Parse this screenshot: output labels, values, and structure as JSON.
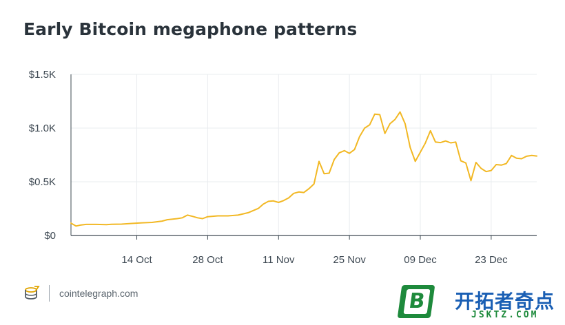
{
  "title": "Early Bitcoin megaphone patterns",
  "footer": {
    "site": "cointelegraph.com",
    "logo_icon": "cointelegraph-logo-icon"
  },
  "watermark": {
    "badge_letter": "B",
    "cn_text": "开拓者奇点",
    "en_text": "JSKTZ.COM"
  },
  "colors": {
    "line": "#F2B824",
    "grid": "#E9ECEF",
    "axis": "#3D4852"
  },
  "chart_data": {
    "type": "line",
    "title": "Early Bitcoin megaphone patterns",
    "xlabel": "",
    "ylabel": "",
    "x_range": [
      "2013-10-01",
      "2013-12-31"
    ],
    "ylim": [
      0,
      1500
    ],
    "y_ticks": [
      {
        "value": 0,
        "label": "$0"
      },
      {
        "value": 500,
        "label": "$0.5K"
      },
      {
        "value": 1000,
        "label": "$1.0K"
      },
      {
        "value": 1500,
        "label": "$1.5K"
      }
    ],
    "x_ticks": [
      {
        "date": "2013-10-14",
        "label": "14 Oct"
      },
      {
        "date": "2013-10-28",
        "label": "28 Oct"
      },
      {
        "date": "2013-11-11",
        "label": "11 Nov"
      },
      {
        "date": "2013-11-25",
        "label": "25 Nov"
      },
      {
        "date": "2013-12-09",
        "label": "09 Dec"
      },
      {
        "date": "2013-12-23",
        "label": "23 Dec"
      }
    ],
    "grid": true,
    "series": [
      {
        "color": "#F2B824",
        "points": [
          [
            "2013-10-01",
            115
          ],
          [
            "2013-10-02",
            88
          ],
          [
            "2013-10-03",
            98
          ],
          [
            "2013-10-04",
            103
          ],
          [
            "2013-10-06",
            103
          ],
          [
            "2013-10-08",
            101
          ],
          [
            "2013-10-09",
            104
          ],
          [
            "2013-10-11",
            106
          ],
          [
            "2013-10-13",
            112
          ],
          [
            "2013-10-15",
            118
          ],
          [
            "2013-10-17",
            122
          ],
          [
            "2013-10-19",
            134
          ],
          [
            "2013-10-20",
            147
          ],
          [
            "2013-10-22",
            157
          ],
          [
            "2013-10-23",
            165
          ],
          [
            "2013-10-24",
            190
          ],
          [
            "2013-10-25",
            178
          ],
          [
            "2013-10-26",
            165
          ],
          [
            "2013-10-27",
            157
          ],
          [
            "2013-10-28",
            175
          ],
          [
            "2013-10-30",
            183
          ],
          [
            "2013-11-01",
            183
          ],
          [
            "2013-11-03",
            190
          ],
          [
            "2013-11-05",
            212
          ],
          [
            "2013-11-07",
            252
          ],
          [
            "2013-11-08",
            292
          ],
          [
            "2013-11-09",
            318
          ],
          [
            "2013-11-10",
            322
          ],
          [
            "2013-11-11",
            308
          ],
          [
            "2013-11-12",
            325
          ],
          [
            "2013-11-13",
            350
          ],
          [
            "2013-11-14",
            392
          ],
          [
            "2013-11-15",
            405
          ],
          [
            "2013-11-16",
            400
          ],
          [
            "2013-11-17",
            435
          ],
          [
            "2013-11-18",
            480
          ],
          [
            "2013-11-19",
            690
          ],
          [
            "2013-11-20",
            575
          ],
          [
            "2013-11-21",
            580
          ],
          [
            "2013-11-22",
            708
          ],
          [
            "2013-11-23",
            770
          ],
          [
            "2013-11-24",
            790
          ],
          [
            "2013-11-25",
            765
          ],
          [
            "2013-11-26",
            800
          ],
          [
            "2013-11-27",
            920
          ],
          [
            "2013-11-28",
            1000
          ],
          [
            "2013-11-29",
            1030
          ],
          [
            "2013-11-30",
            1130
          ],
          [
            "2013-12-01",
            1125
          ],
          [
            "2013-12-02",
            950
          ],
          [
            "2013-12-03",
            1040
          ],
          [
            "2013-12-04",
            1080
          ],
          [
            "2013-12-05",
            1150
          ],
          [
            "2013-12-06",
            1040
          ],
          [
            "2013-12-07",
            820
          ],
          [
            "2013-12-08",
            690
          ],
          [
            "2013-12-10",
            860
          ],
          [
            "2013-12-11",
            975
          ],
          [
            "2013-12-12",
            870
          ],
          [
            "2013-12-13",
            865
          ],
          [
            "2013-12-14",
            880
          ],
          [
            "2013-12-15",
            862
          ],
          [
            "2013-12-16",
            870
          ],
          [
            "2013-12-17",
            695
          ],
          [
            "2013-12-18",
            675
          ],
          [
            "2013-12-19",
            510
          ],
          [
            "2013-12-20",
            680
          ],
          [
            "2013-12-21",
            625
          ],
          [
            "2013-12-22",
            595
          ],
          [
            "2013-12-23",
            605
          ],
          [
            "2013-12-24",
            660
          ],
          [
            "2013-12-25",
            655
          ],
          [
            "2013-12-26",
            670
          ],
          [
            "2013-12-27",
            745
          ],
          [
            "2013-12-28",
            720
          ],
          [
            "2013-12-29",
            715
          ],
          [
            "2013-12-30",
            738
          ],
          [
            "2013-12-31",
            745
          ],
          [
            "2014-01-01",
            740
          ]
        ]
      }
    ]
  }
}
